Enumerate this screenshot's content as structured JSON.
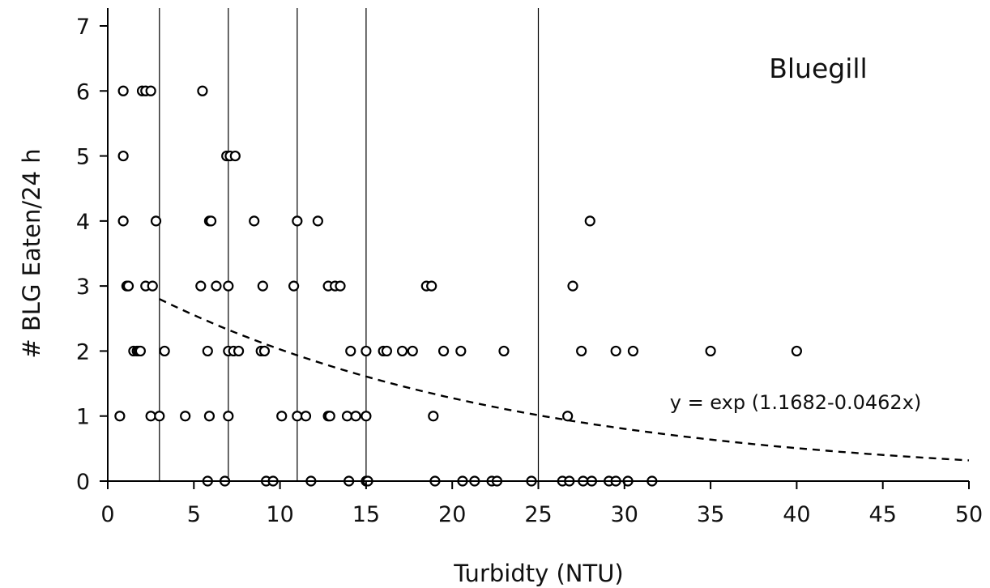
{
  "chart_data": {
    "type": "scatter",
    "xlabel": "Turbidty (NTU)",
    "ylabel": "# BLG Eaten/24 h",
    "xlim": [
      0,
      50
    ],
    "ylim": [
      0,
      7
    ],
    "xticks": [
      0,
      5,
      10,
      15,
      20,
      25,
      30,
      35,
      40,
      45,
      50
    ],
    "yticks": [
      0,
      1,
      2,
      3,
      4,
      5,
      6,
      7
    ],
    "grid": false,
    "vertical_reference_lines": [
      3,
      7,
      11,
      15,
      25
    ],
    "annotations": {
      "species": "Bluegill",
      "equation": "y = exp (1.1682-0.0462x)"
    },
    "fit": {
      "type": "exponential",
      "a": 1.1682,
      "b": -0.0462,
      "x_range": [
        3,
        50
      ],
      "style": "dashed"
    },
    "series": [
      {
        "marker": "open-circle",
        "points": [
          [
            0.9,
            6
          ],
          [
            2.0,
            6
          ],
          [
            2.2,
            6
          ],
          [
            2.5,
            6
          ],
          [
            5.5,
            6
          ],
          [
            0.9,
            5
          ],
          [
            6.9,
            5
          ],
          [
            7.1,
            5
          ],
          [
            7.4,
            5
          ],
          [
            0.9,
            4
          ],
          [
            2.8,
            4
          ],
          [
            5.9,
            4
          ],
          [
            6.0,
            4
          ],
          [
            8.5,
            4
          ],
          [
            11.0,
            4
          ],
          [
            12.2,
            4
          ],
          [
            28.0,
            4
          ],
          [
            1.1,
            3
          ],
          [
            1.2,
            3
          ],
          [
            2.2,
            3
          ],
          [
            2.6,
            3
          ],
          [
            5.4,
            3
          ],
          [
            6.3,
            3
          ],
          [
            7.0,
            3
          ],
          [
            9.0,
            3
          ],
          [
            10.8,
            3
          ],
          [
            12.8,
            3
          ],
          [
            13.2,
            3
          ],
          [
            13.5,
            3
          ],
          [
            18.5,
            3
          ],
          [
            18.8,
            3
          ],
          [
            27.0,
            3
          ],
          [
            1.5,
            2
          ],
          [
            1.7,
            2
          ],
          [
            1.8,
            2
          ],
          [
            1.9,
            2
          ],
          [
            3.3,
            2
          ],
          [
            5.8,
            2
          ],
          [
            7.0,
            2
          ],
          [
            7.3,
            2
          ],
          [
            7.6,
            2
          ],
          [
            8.9,
            2
          ],
          [
            9.1,
            2
          ],
          [
            14.1,
            2
          ],
          [
            15.0,
            2
          ],
          [
            16.0,
            2
          ],
          [
            16.2,
            2
          ],
          [
            17.1,
            2
          ],
          [
            17.7,
            2
          ],
          [
            19.5,
            2
          ],
          [
            20.5,
            2
          ],
          [
            23.0,
            2
          ],
          [
            27.5,
            2
          ],
          [
            29.5,
            2
          ],
          [
            30.5,
            2
          ],
          [
            35.0,
            2
          ],
          [
            40.0,
            2
          ],
          [
            0.7,
            1
          ],
          [
            2.5,
            1
          ],
          [
            3.0,
            1
          ],
          [
            4.5,
            1
          ],
          [
            5.9,
            1
          ],
          [
            7.0,
            1
          ],
          [
            10.1,
            1
          ],
          [
            11.0,
            1
          ],
          [
            11.5,
            1
          ],
          [
            12.8,
            1
          ],
          [
            12.9,
            1
          ],
          [
            13.9,
            1
          ],
          [
            14.4,
            1
          ],
          [
            15.0,
            1
          ],
          [
            18.9,
            1
          ],
          [
            26.7,
            1
          ],
          [
            5.8,
            0
          ],
          [
            6.8,
            0
          ],
          [
            9.2,
            0
          ],
          [
            9.6,
            0
          ],
          [
            11.8,
            0
          ],
          [
            14.0,
            0
          ],
          [
            15.0,
            0
          ],
          [
            15.1,
            0
          ],
          [
            19.0,
            0
          ],
          [
            20.6,
            0
          ],
          [
            21.3,
            0
          ],
          [
            22.3,
            0
          ],
          [
            22.6,
            0
          ],
          [
            24.6,
            0
          ],
          [
            26.4,
            0
          ],
          [
            26.8,
            0
          ],
          [
            27.6,
            0
          ],
          [
            28.1,
            0
          ],
          [
            29.1,
            0
          ],
          [
            29.5,
            0
          ],
          [
            30.2,
            0
          ],
          [
            31.6,
            0
          ]
        ]
      }
    ]
  }
}
